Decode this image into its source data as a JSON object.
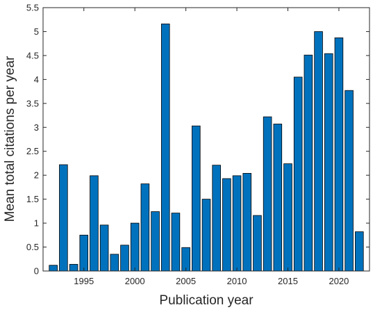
{
  "chart_data": {
    "type": "bar",
    "xlabel": "Publication year",
    "ylabel": "Mean total citations per year",
    "x": [
      1992,
      1993,
      1994,
      1995,
      1996,
      1997,
      1998,
      1999,
      2000,
      2001,
      2002,
      2003,
      2004,
      2005,
      2006,
      2007,
      2008,
      2009,
      2010,
      2011,
      2012,
      2013,
      2014,
      2015,
      2016,
      2017,
      2018,
      2019,
      2020,
      2021,
      2022
    ],
    "values": [
      0.12,
      2.22,
      0.14,
      0.75,
      1.99,
      0.96,
      0.35,
      0.54,
      1.0,
      1.82,
      1.24,
      5.16,
      1.21,
      0.49,
      3.03,
      1.5,
      2.21,
      1.93,
      1.99,
      2.04,
      1.16,
      3.22,
      3.07,
      2.24,
      4.05,
      4.51,
      5.0,
      4.54,
      4.87,
      3.77,
      0.82
    ],
    "xlim": [
      1991,
      2023
    ],
    "ylim": [
      0,
      5.5
    ],
    "xticks": [
      1995,
      2000,
      2005,
      2010,
      2015,
      2020
    ],
    "yticks": [
      0,
      0.5,
      1,
      1.5,
      2,
      2.5,
      3,
      3.5,
      4,
      4.5,
      5,
      5.5
    ],
    "grid": false,
    "bar_color": "#0072BD",
    "edge_color": "#000000"
  }
}
